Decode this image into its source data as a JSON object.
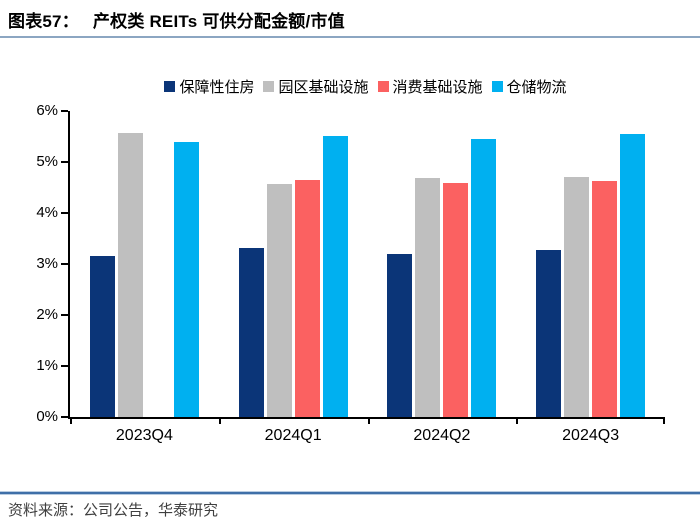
{
  "figure": {
    "number_label": "图表57：",
    "title": "产权类 REITs 可供分配金额/市值",
    "source_text": "资料来源：公司公告，华泰研究"
  },
  "colors": {
    "title_underline": "#8ca6c2",
    "source_divider": "#3f6fa8",
    "axis": "#000000",
    "series_navy": "#0b3578",
    "series_gray": "#bfbfbf",
    "series_red": "#fb6161",
    "series_cyan": "#00b0f0"
  },
  "chart_data": {
    "type": "bar",
    "title": "产权类 REITs 可供分配金额/市值",
    "categories": [
      "2023Q4",
      "2024Q1",
      "2024Q2",
      "2024Q3"
    ],
    "series": [
      {
        "name": "保障性住房",
        "color": "#0b3578",
        "values": [
          3.15,
          3.32,
          3.2,
          3.27
        ]
      },
      {
        "name": "园区基础设施",
        "color": "#bfbfbf",
        "values": [
          5.56,
          4.57,
          4.68,
          4.71
        ]
      },
      {
        "name": "消费基础设施",
        "color": "#fb6161",
        "values": [
          null,
          4.65,
          4.58,
          4.62
        ]
      },
      {
        "name": "仓储物流",
        "color": "#00b0f0",
        "values": [
          5.4,
          5.51,
          5.45,
          5.54
        ]
      }
    ],
    "xlabel": "",
    "ylabel": "",
    "ylim": [
      0,
      6
    ],
    "ytick_step": 1,
    "yticks": [
      "0%",
      "1%",
      "2%",
      "3%",
      "4%",
      "5%",
      "6%"
    ],
    "grid": false,
    "legend_position": "top"
  }
}
